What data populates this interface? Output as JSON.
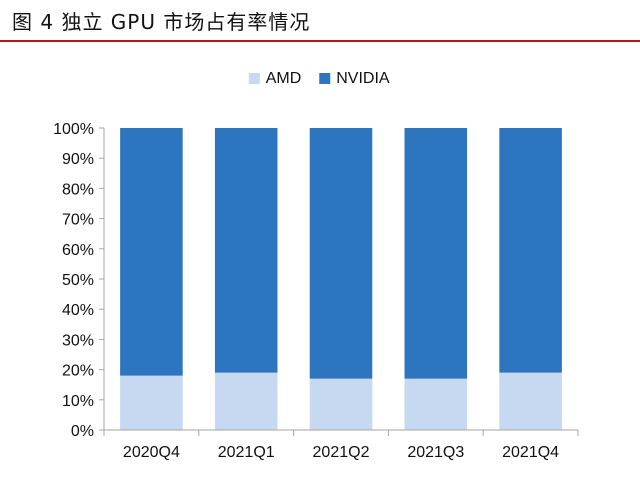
{
  "header": {
    "title": "图 4  独立 GPU 市场占有率情况"
  },
  "colors": {
    "accent_rule": "#c0121a",
    "amd": "#c6d9f1",
    "nvidia": "#2e75c0"
  },
  "chart_data": {
    "type": "bar",
    "stacked": true,
    "categories": [
      "2020Q4",
      "2021Q1",
      "2021Q2",
      "2021Q3",
      "2021Q4"
    ],
    "series": [
      {
        "name": "AMD",
        "values": [
          18,
          19,
          17,
          17,
          19
        ]
      },
      {
        "name": "NVIDIA",
        "values": [
          82,
          81,
          83,
          83,
          81
        ]
      }
    ],
    "yticks": [
      "0%",
      "10%",
      "20%",
      "30%",
      "40%",
      "50%",
      "60%",
      "70%",
      "80%",
      "90%",
      "100%"
    ],
    "ylim": [
      0,
      100
    ],
    "grid": false,
    "legend": "top-center"
  }
}
